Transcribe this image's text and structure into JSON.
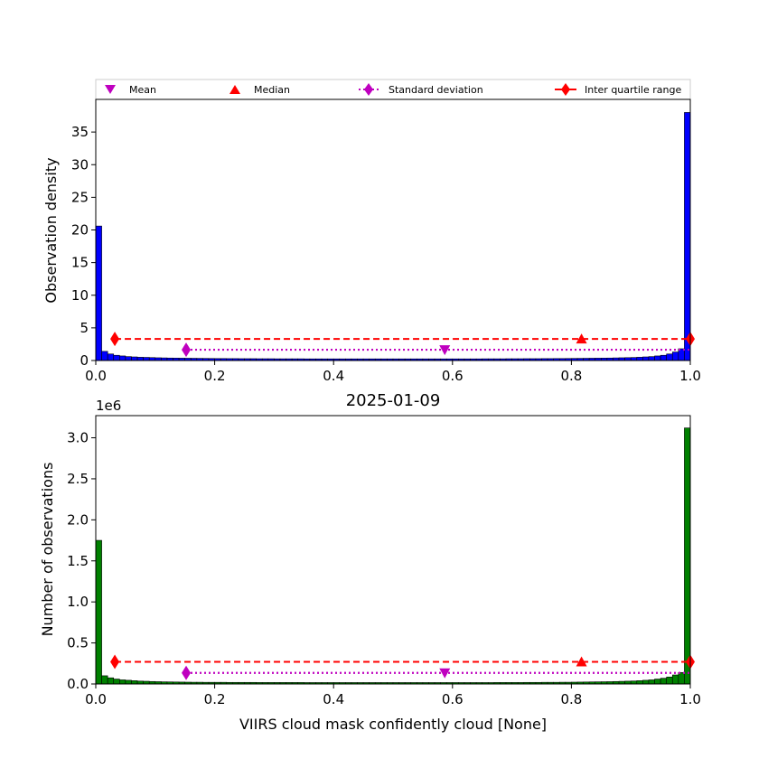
{
  "chart_data": [
    {
      "type": "bar",
      "ylabel": "Observation density",
      "xlim": [
        0.0,
        1.0
      ],
      "ylim": [
        0,
        40
      ],
      "x_ticks": [
        "0.0",
        "0.2",
        "0.4",
        "0.6",
        "0.8",
        "1.0"
      ],
      "y_ticks": [
        "0",
        "5",
        "10",
        "15",
        "20",
        "25",
        "30",
        "35"
      ],
      "bar_color": "#0000ff",
      "bin_width": 0.01,
      "values": [
        20.6,
        1.4,
        1.0,
        0.8,
        0.7,
        0.6,
        0.55,
        0.5,
        0.48,
        0.45,
        0.42,
        0.4,
        0.38,
        0.37,
        0.36,
        0.35,
        0.34,
        0.33,
        0.32,
        0.31,
        0.3,
        0.3,
        0.29,
        0.29,
        0.28,
        0.28,
        0.28,
        0.27,
        0.27,
        0.27,
        0.26,
        0.26,
        0.26,
        0.26,
        0.26,
        0.25,
        0.25,
        0.25,
        0.25,
        0.25,
        0.25,
        0.25,
        0.25,
        0.25,
        0.25,
        0.25,
        0.25,
        0.25,
        0.25,
        0.25,
        0.25,
        0.25,
        0.25,
        0.25,
        0.25,
        0.25,
        0.25,
        0.25,
        0.25,
        0.25,
        0.25,
        0.25,
        0.25,
        0.25,
        0.25,
        0.26,
        0.26,
        0.26,
        0.26,
        0.27,
        0.27,
        0.27,
        0.28,
        0.28,
        0.28,
        0.29,
        0.29,
        0.3,
        0.3,
        0.31,
        0.32,
        0.33,
        0.34,
        0.35,
        0.36,
        0.37,
        0.38,
        0.4,
        0.42,
        0.44,
        0.46,
        0.5,
        0.55,
        0.6,
        0.7,
        0.8,
        1.0,
        1.3,
        1.8,
        38.0
      ],
      "stats": {
        "y_level_iqr": 3.3,
        "y_level_std": 1.65,
        "mean": 0.587,
        "median": 0.817,
        "std_range": [
          0.152,
          1.0
        ],
        "iqr_range": [
          0.032,
          1.0
        ]
      }
    },
    {
      "type": "bar",
      "title": "2025-01-09",
      "xlabel": "VIIRS cloud mask confidently cloud [None]",
      "ylabel": "Number of observations",
      "y_offset_label": "1e6",
      "xlim": [
        0.0,
        1.0
      ],
      "ylim": [
        0,
        3.27
      ],
      "x_ticks": [
        "0.0",
        "0.2",
        "0.4",
        "0.6",
        "0.8",
        "1.0"
      ],
      "y_ticks": [
        "0.0",
        "0.5",
        "1.0",
        "1.5",
        "2.0",
        "2.5",
        "3.0"
      ],
      "bar_color": "#008000",
      "bin_width": 0.01,
      "values": [
        1.75,
        0.1,
        0.075,
        0.06,
        0.05,
        0.045,
        0.04,
        0.035,
        0.033,
        0.03,
        0.028,
        0.026,
        0.025,
        0.024,
        0.023,
        0.022,
        0.021,
        0.021,
        0.02,
        0.02,
        0.02,
        0.02,
        0.019,
        0.019,
        0.019,
        0.019,
        0.019,
        0.018,
        0.018,
        0.018,
        0.018,
        0.018,
        0.018,
        0.018,
        0.018,
        0.017,
        0.017,
        0.017,
        0.017,
        0.017,
        0.017,
        0.017,
        0.017,
        0.017,
        0.017,
        0.017,
        0.017,
        0.017,
        0.017,
        0.017,
        0.017,
        0.017,
        0.017,
        0.017,
        0.017,
        0.017,
        0.017,
        0.017,
        0.017,
        0.017,
        0.017,
        0.017,
        0.017,
        0.017,
        0.017,
        0.017,
        0.017,
        0.018,
        0.018,
        0.018,
        0.018,
        0.018,
        0.019,
        0.019,
        0.019,
        0.02,
        0.02,
        0.02,
        0.021,
        0.021,
        0.022,
        0.023,
        0.024,
        0.025,
        0.026,
        0.027,
        0.028,
        0.03,
        0.032,
        0.034,
        0.036,
        0.04,
        0.045,
        0.05,
        0.06,
        0.07,
        0.085,
        0.11,
        0.14,
        3.12
      ],
      "stats": {
        "y_level_iqr": 0.27,
        "y_level_std": 0.135,
        "mean": 0.587,
        "median": 0.817,
        "std_range": [
          0.152,
          1.0
        ],
        "iqr_range": [
          0.032,
          1.0
        ]
      }
    }
  ],
  "legend": {
    "placement": "top",
    "entries": [
      {
        "label": "Mean",
        "marker": "triangle-down",
        "color": "#bf00bf"
      },
      {
        "label": "Median",
        "marker": "triangle-up",
        "color": "#ff0000"
      },
      {
        "label": "Standard deviation",
        "marker": "diamond",
        "color": "#bf00bf",
        "line": "dotted"
      },
      {
        "label": "Inter quartile range",
        "marker": "diamond",
        "color": "#ff0000",
        "line": "dashed"
      }
    ]
  },
  "colors": {
    "mean": "#bf00bf",
    "median": "#ff0000",
    "std": "#bf00bf",
    "iqr": "#ff0000"
  }
}
